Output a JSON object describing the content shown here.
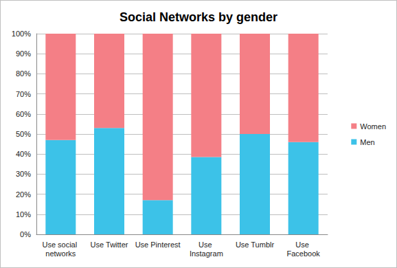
{
  "chart_data": {
    "type": "bar",
    "title": "Social Networks by gender",
    "categories": [
      "Use social networks",
      "Use Twitter",
      "Use Pinterest",
      "Use Instagram",
      "Use Tumblr",
      "Use Facebook"
    ],
    "series": [
      {
        "name": "Men",
        "color": "#3cc2e8",
        "values": [
          47,
          53,
          17,
          38.5,
          50,
          46
        ]
      },
      {
        "name": "Women",
        "color": "#f47f86",
        "values": [
          53,
          47,
          83,
          61.5,
          50,
          54
        ]
      }
    ],
    "stacked": true,
    "ylim": [
      0,
      100
    ],
    "yticks": [
      {
        "value": 0,
        "label": "0%"
      },
      {
        "value": 10,
        "label": "10%"
      },
      {
        "value": 20,
        "label": "20%"
      },
      {
        "value": 30,
        "label": "30%"
      },
      {
        "value": 40,
        "label": "40%"
      },
      {
        "value": 50,
        "label": "50%"
      },
      {
        "value": 60,
        "label": "60%"
      },
      {
        "value": 70,
        "label": "70%"
      },
      {
        "value": 80,
        "label": "80%"
      },
      {
        "value": 90,
        "label": "90%"
      },
      {
        "value": 100,
        "label": "100%"
      }
    ],
    "grid": true,
    "legend": "right"
  }
}
